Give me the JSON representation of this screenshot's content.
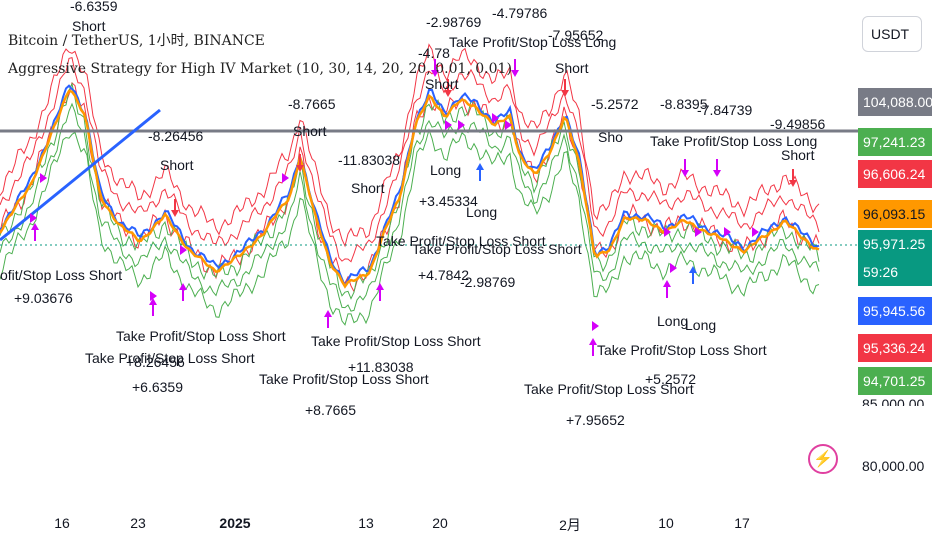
{
  "chart_header": {
    "symbol_line": "Bitcoin / TetherUS, 1小时, BINANCE",
    "strategy_line": "Aggressive Strategy for High IV Market (10, 30, 14, 20, 20, 0.01, 0.01)"
  },
  "price_axis": {
    "currency": "USDT",
    "gridline_label": "80,000.00",
    "partial_label": "85,000.00",
    "tags": [
      {
        "text": "104,088.00",
        "color": "#787b86"
      },
      {
        "text": "97,241.23",
        "color": "#4caf50"
      },
      {
        "text": "96,606.24",
        "color": "#f23645"
      },
      {
        "text": "96,093.15",
        "color": "#ff9800"
      },
      {
        "text": "95,971.25",
        "color": "#089981"
      },
      {
        "text": "59:26",
        "color": "#089981"
      },
      {
        "text": "95,945.56",
        "color": "#2962ff"
      },
      {
        "text": "95,336.24",
        "color": "#f23645"
      },
      {
        "text": "94,701.25",
        "color": "#4caf50"
      }
    ]
  },
  "time_axis": {
    "labels": [
      {
        "text": "16",
        "bold": false
      },
      {
        "text": "23",
        "bold": false
      },
      {
        "text": "2025",
        "bold": true
      },
      {
        "text": "13",
        "bold": false
      },
      {
        "text": "20",
        "bold": false
      },
      {
        "text": "2月",
        "bold": false
      },
      {
        "text": "10",
        "bold": false
      },
      {
        "text": "17",
        "bold": false
      }
    ]
  },
  "trade_labels": [
    {
      "text": "-6.6359"
    },
    {
      "text": "Short"
    },
    {
      "text": "-8.26456"
    },
    {
      "text": "Short"
    },
    {
      "text": "-8.7665"
    },
    {
      "text": "Short"
    },
    {
      "text": "-11.83038"
    },
    {
      "text": "Short"
    },
    {
      "text": "-2.98769"
    },
    {
      "text": "-4.79786"
    },
    {
      "text": "-4.78"
    },
    {
      "text": "Take Profit/Stop Loss Long"
    },
    {
      "text": "-7.95652"
    },
    {
      "text": "Short"
    },
    {
      "text": "Short"
    },
    {
      "text": "Long"
    },
    {
      "text": "+3.45334"
    },
    {
      "text": "Long"
    },
    {
      "text": "Take Profit/Stop Loss Short"
    },
    {
      "text": "Take Profit/Stop Loss Short"
    },
    {
      "text": "+4.7842"
    },
    {
      "text": "-2.98769"
    },
    {
      "text": "-5.2572"
    },
    {
      "text": "Sho"
    },
    {
      "text": "-8.8395"
    },
    {
      "text": "-7.84739"
    },
    {
      "text": "Take Profit/Stop Loss Long"
    },
    {
      "text": "-9.49856"
    },
    {
      "text": "Short"
    },
    {
      "text": "ofit/Stop Loss Short"
    },
    {
      "text": "+9.03676"
    },
    {
      "text": "Take Profit/Stop Loss Short"
    },
    {
      "text": "Take Profit/Stop Loss Short"
    },
    {
      "text": "+8.26456"
    },
    {
      "text": "+6.6359"
    },
    {
      "text": "Take Profit/Stop Loss Short"
    },
    {
      "text": "+11.83038"
    },
    {
      "text": "Take Profit/Stop Loss Short"
    },
    {
      "text": "+8.7665"
    },
    {
      "text": "Long"
    },
    {
      "text": "Long"
    },
    {
      "text": "Take Profit/Stop Loss Short"
    },
    {
      "text": "+5.2572"
    },
    {
      "text": "Take Profit/Stop Loss Short"
    },
    {
      "text": "+7.95652"
    }
  ],
  "colors": {
    "upper_band": "#f23645",
    "lower_band": "#4caf50",
    "fast_ma": "#2962ff",
    "slow_ma": "#ff9800",
    "trend_line": "#2962ff",
    "horizontal_line": "#787b86",
    "marker_magenta": "#d500f9",
    "current_price_line": "#089981"
  },
  "icons": {
    "lightning": "lightning-icon"
  }
}
